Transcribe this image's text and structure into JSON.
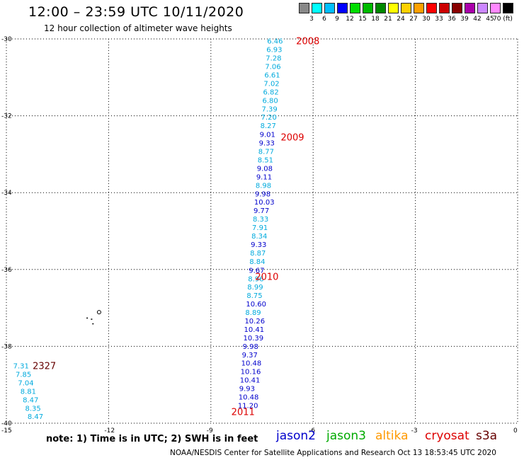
{
  "title": "12:00 – 23:59 UTC 10/11/2020",
  "subtitle": "12 hour collection of altimeter wave heights",
  "colorbar": {
    "colors": [
      "#888888",
      "#00ffff",
      "#00bfff",
      "#0000ff",
      "#00dd00",
      "#00bb00",
      "#008800",
      "#ffff00",
      "#ffd000",
      "#ffa000",
      "#ff0000",
      "#cc0000",
      "#880000",
      "#aa00aa",
      "#cc88ff",
      "#ff88ff",
      "#000000"
    ],
    "labels": [
      "3",
      "6",
      "9",
      "12",
      "15",
      "18",
      "21",
      "24",
      "27",
      "30",
      "33",
      "36",
      "39",
      "42",
      "45",
      "70 (ft)"
    ]
  },
  "axes": {
    "lat_ticks": [
      "-30",
      "-32",
      "-34",
      "-36",
      "-38",
      "-40"
    ],
    "lon_ticks": [
      "-15",
      "-12",
      "-9",
      "-6",
      "-3",
      "0"
    ]
  },
  "map": {
    "x_range": [
      -15,
      0
    ],
    "y_range": [
      -30,
      -40
    ],
    "land": [
      {
        "type": "ring",
        "lon": -12.28,
        "lat": -37.11
      },
      {
        "type": "dot",
        "lon": -12.65,
        "lat": -37.25
      },
      {
        "type": "dot",
        "lon": -12.52,
        "lat": -37.28
      },
      {
        "type": "dot",
        "lon": -12.48,
        "lat": -37.4
      }
    ],
    "track_labels": [
      {
        "text": "2008",
        "lon": -6.5,
        "lat": -30.05,
        "color": "#dd0000"
      },
      {
        "text": "2009",
        "lon": -6.95,
        "lat": -32.55,
        "color": "#dd0000"
      },
      {
        "text": "2010",
        "lon": -7.7,
        "lat": -36.18,
        "color": "#dd0000"
      },
      {
        "text": "2011",
        "lon": -8.4,
        "lat": -39.7,
        "color": "#dd0000"
      },
      {
        "text": "2327",
        "lon": -14.23,
        "lat": -38.5,
        "color": "#660000"
      }
    ],
    "points": [
      {
        "v": "6.46",
        "lon": -7.35,
        "lat": -30.05,
        "c": "#00aadd"
      },
      {
        "v": "6.93",
        "lon": -7.37,
        "lat": -30.27,
        "c": "#00aadd"
      },
      {
        "v": "7.28",
        "lon": -7.39,
        "lat": -30.49,
        "c": "#00aadd"
      },
      {
        "v": "7.06",
        "lon": -7.41,
        "lat": -30.71,
        "c": "#00aadd"
      },
      {
        "v": "6.61",
        "lon": -7.43,
        "lat": -30.93,
        "c": "#00aadd"
      },
      {
        "v": "7.02",
        "lon": -7.45,
        "lat": -31.15,
        "c": "#00aadd"
      },
      {
        "v": "6.82",
        "lon": -7.47,
        "lat": -31.37,
        "c": "#00aadd"
      },
      {
        "v": "6.80",
        "lon": -7.49,
        "lat": -31.59,
        "c": "#00aadd"
      },
      {
        "v": "7.39",
        "lon": -7.51,
        "lat": -31.81,
        "c": "#00aadd"
      },
      {
        "v": "7.20",
        "lon": -7.53,
        "lat": -32.03,
        "c": "#00aadd"
      },
      {
        "v": "8.27",
        "lon": -7.55,
        "lat": -32.25,
        "c": "#00aadd"
      },
      {
        "v": "9.01",
        "lon": -7.57,
        "lat": -32.48,
        "c": "#0000cc"
      },
      {
        "v": "9.33",
        "lon": -7.59,
        "lat": -32.7,
        "c": "#0000cc"
      },
      {
        "v": "8.77",
        "lon": -7.61,
        "lat": -32.92,
        "c": "#00aadd"
      },
      {
        "v": "8.51",
        "lon": -7.63,
        "lat": -33.14,
        "c": "#00aadd"
      },
      {
        "v": "9.08",
        "lon": -7.65,
        "lat": -33.36,
        "c": "#0000cc"
      },
      {
        "v": "9.11",
        "lon": -7.67,
        "lat": -33.58,
        "c": "#0000cc"
      },
      {
        "v": "8.98",
        "lon": -7.69,
        "lat": -33.8,
        "c": "#00aadd"
      },
      {
        "v": "9.98",
        "lon": -7.71,
        "lat": -34.02,
        "c": "#0000cc"
      },
      {
        "v": "10.03",
        "lon": -7.73,
        "lat": -34.24,
        "c": "#0000cc"
      },
      {
        "v": "9.77",
        "lon": -7.75,
        "lat": -34.46,
        "c": "#0000cc"
      },
      {
        "v": "8.33",
        "lon": -7.77,
        "lat": -34.68,
        "c": "#00aadd"
      },
      {
        "v": "7.91",
        "lon": -7.79,
        "lat": -34.9,
        "c": "#00aadd"
      },
      {
        "v": "8.34",
        "lon": -7.81,
        "lat": -35.12,
        "c": "#00aadd"
      },
      {
        "v": "9.33",
        "lon": -7.83,
        "lat": -35.34,
        "c": "#0000cc"
      },
      {
        "v": "8.87",
        "lon": -7.85,
        "lat": -35.56,
        "c": "#00aadd"
      },
      {
        "v": "8.84",
        "lon": -7.87,
        "lat": -35.78,
        "c": "#00aadd"
      },
      {
        "v": "9.67",
        "lon": -7.89,
        "lat": -36.01,
        "c": "#0000cc"
      },
      {
        "v": "8.96",
        "lon": -7.91,
        "lat": -36.23,
        "c": "#00aadd"
      },
      {
        "v": "8.99",
        "lon": -7.93,
        "lat": -36.45,
        "c": "#00aadd"
      },
      {
        "v": "8.75",
        "lon": -7.95,
        "lat": -36.67,
        "c": "#00aadd"
      },
      {
        "v": "10.60",
        "lon": -7.97,
        "lat": -36.89,
        "c": "#0000cc"
      },
      {
        "v": "8.89",
        "lon": -7.99,
        "lat": -37.11,
        "c": "#00aadd"
      },
      {
        "v": "10.26",
        "lon": -8.01,
        "lat": -37.33,
        "c": "#0000cc"
      },
      {
        "v": "10.41",
        "lon": -8.03,
        "lat": -37.55,
        "c": "#0000cc"
      },
      {
        "v": "10.39",
        "lon": -8.05,
        "lat": -37.77,
        "c": "#0000cc"
      },
      {
        "v": "9.98",
        "lon": -8.07,
        "lat": -37.99,
        "c": "#0000cc"
      },
      {
        "v": "9.37",
        "lon": -8.09,
        "lat": -38.21,
        "c": "#0000cc"
      },
      {
        "v": "10.48",
        "lon": -8.11,
        "lat": -38.43,
        "c": "#0000cc"
      },
      {
        "v": "10.16",
        "lon": -8.13,
        "lat": -38.65,
        "c": "#0000cc"
      },
      {
        "v": "10.41",
        "lon": -8.15,
        "lat": -38.87,
        "c": "#0000cc"
      },
      {
        "v": "9.93",
        "lon": -8.17,
        "lat": -39.09,
        "c": "#0000cc"
      },
      {
        "v": "10.48",
        "lon": -8.19,
        "lat": -39.31,
        "c": "#0000cc"
      },
      {
        "v": "11.20",
        "lon": -8.21,
        "lat": -39.53,
        "c": "#0000cc"
      },
      {
        "v": "7.31",
        "lon": -14.8,
        "lat": -38.5,
        "c": "#00aadd"
      },
      {
        "v": "7.85",
        "lon": -14.73,
        "lat": -38.72,
        "c": "#00aadd"
      },
      {
        "v": "7.04",
        "lon": -14.66,
        "lat": -38.94,
        "c": "#00aadd"
      },
      {
        "v": "8.81",
        "lon": -14.59,
        "lat": -39.16,
        "c": "#00aadd"
      },
      {
        "v": "8.47",
        "lon": -14.52,
        "lat": -39.38,
        "c": "#00aadd"
      },
      {
        "v": "8.35",
        "lon": -14.45,
        "lat": -39.6,
        "c": "#00aadd"
      },
      {
        "v": "8.47",
        "lon": -14.38,
        "lat": -39.82,
        "c": "#00aadd"
      }
    ]
  },
  "note": "note:  1) Time is in UTC;  2) SWH is in feet",
  "satellites": [
    {
      "name": "jason2",
      "color": "#0000cc"
    },
    {
      "name": "jason3",
      "color": "#00aa00"
    },
    {
      "name": "altika",
      "color": "#ff9900"
    },
    {
      "name": "cryosat",
      "color": "#dd0000"
    },
    {
      "name": "s3a",
      "color": "#660000"
    }
  ],
  "footer": "NOAA/NESDIS Center for Satellite Applications and Research     Oct 13 18:53:45 UTC 2020"
}
